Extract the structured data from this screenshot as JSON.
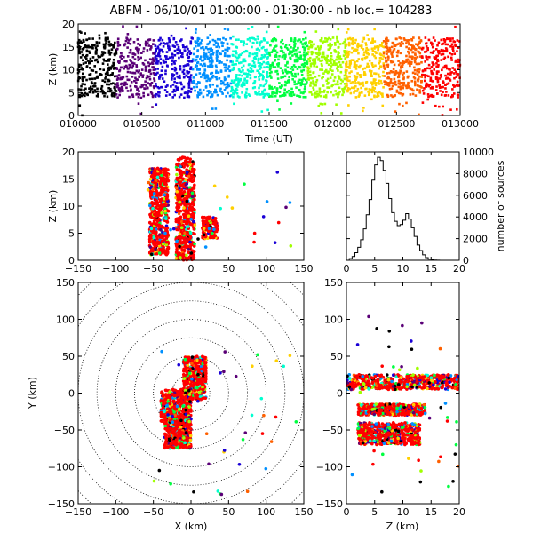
{
  "figure": {
    "title": "ABFM - 06/10/01 01:00:00 - 01:30:00 - nb loc.= 104283"
  },
  "colors": {
    "colormap": [
      "#000000",
      "#5a0077",
      "#1a00d6",
      "#0090ff",
      "#00ffd0",
      "#00ff40",
      "#a0ff00",
      "#ffd000",
      "#ff6000",
      "#ff0000"
    ],
    "axis": "#000000"
  },
  "chart_data": [
    {
      "id": "time-height",
      "type": "scatter",
      "xlabel": "Time (UT)",
      "ylabel": "Z (km)",
      "xlim": [
        10000,
        13000
      ],
      "ylim": [
        0,
        20
      ],
      "xticks": [
        "010000",
        "010500",
        "011000",
        "011500",
        "012000",
        "012500",
        "013000"
      ],
      "yticks": [
        "0",
        "5",
        "10",
        "15",
        "20"
      ],
      "band_z": [
        4,
        17
      ],
      "color_by": "time"
    },
    {
      "id": "x-height",
      "type": "scatter",
      "xlabel": "",
      "ylabel": "Z (km)",
      "xlim": [
        -150,
        150
      ],
      "ylim": [
        0,
        20
      ],
      "xticks": [
        "−150",
        "−100",
        "−50",
        "0",
        "50",
        "100",
        "150"
      ],
      "yticks": [
        "0",
        "5",
        "10",
        "15",
        "20"
      ],
      "clusters": [
        {
          "x": [
            -55,
            -30
          ],
          "z": [
            1,
            17
          ]
        },
        {
          "x": [
            -20,
            5
          ],
          "z": [
            0,
            19
          ]
        },
        {
          "x": [
            15,
            35
          ],
          "z": [
            4,
            8
          ]
        }
      ]
    },
    {
      "id": "height-histogram",
      "type": "line",
      "xlabel": "",
      "ylabel": "number of sources",
      "xlim": [
        0,
        20
      ],
      "ylim": [
        0,
        10000
      ],
      "xticks": [
        "0",
        "5",
        "10",
        "15",
        "20"
      ],
      "yticks": [
        "0",
        "2000",
        "4000",
        "6000",
        "8000",
        "10000"
      ],
      "x": [
        0,
        0.5,
        1,
        1.5,
        2,
        2.5,
        3,
        3.5,
        4,
        4.5,
        5,
        5.5,
        6,
        6.5,
        7,
        7.5,
        8,
        8.5,
        9,
        9.5,
        10,
        10.5,
        11,
        11.5,
        12,
        12.5,
        13,
        13.5,
        14,
        14.5,
        15,
        15.5,
        16,
        16.5,
        17,
        17.5,
        18,
        18.5,
        19,
        19.5
      ],
      "values": [
        0,
        150,
        350,
        700,
        1200,
        1900,
        2900,
        4200,
        5600,
        7400,
        8800,
        9500,
        9200,
        8300,
        7100,
        5700,
        4400,
        3600,
        3200,
        3300,
        3700,
        4300,
        3800,
        3000,
        2200,
        1400,
        900,
        500,
        250,
        100,
        50,
        20,
        10,
        0,
        0,
        0,
        0,
        0,
        0,
        0
      ]
    },
    {
      "id": "plan-view",
      "type": "scatter",
      "xlabel": "X (km)",
      "ylabel": "Y (km)",
      "xlim": [
        -150,
        150
      ],
      "ylim": [
        -150,
        150
      ],
      "xticks": [
        "−150",
        "−100",
        "−50",
        "0",
        "50",
        "100",
        "150"
      ],
      "yticks": [
        "−150",
        "−100",
        "−50",
        "0",
        "50",
        "100",
        "150"
      ],
      "range_rings_km": [
        25,
        50,
        75,
        100,
        125,
        150,
        175,
        200
      ],
      "clusters": [
        {
          "x": [
            -10,
            20
          ],
          "y": [
            -10,
            50
          ]
        },
        {
          "x": [
            -40,
            0
          ],
          "y": [
            -40,
            5
          ]
        },
        {
          "x": [
            -35,
            0
          ],
          "y": [
            -75,
            -35
          ]
        }
      ]
    },
    {
      "id": "z-y",
      "type": "scatter",
      "xlabel": "Z (km)",
      "ylabel": "",
      "xlim": [
        0,
        20
      ],
      "ylim": [
        -150,
        150
      ],
      "xticks": [
        "0",
        "5",
        "10",
        "15",
        "20"
      ],
      "yticks": [
        "−150",
        "−100",
        "−50",
        "0",
        "50",
        "100",
        "150"
      ],
      "clusters": [
        {
          "z": [
            0,
            20
          ],
          "y": [
            5,
            25
          ]
        },
        {
          "z": [
            2,
            14
          ],
          "y": [
            -30,
            -15
          ]
        },
        {
          "z": [
            2,
            13
          ],
          "y": [
            -70,
            -40
          ]
        }
      ]
    }
  ]
}
